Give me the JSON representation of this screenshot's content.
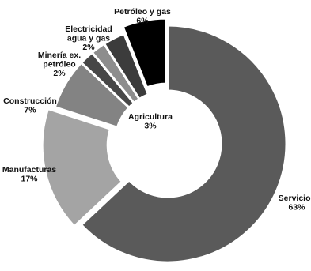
{
  "chart_data": {
    "type": "donut",
    "title": "",
    "start_angle_deg": 0,
    "direction": "clockwise",
    "series": [
      {
        "name": "Servicios",
        "label_lines": [
          "Servicios",
          "63%"
        ],
        "value": 63,
        "color": "#5a5a5a",
        "exploded": false
      },
      {
        "name": "Manufacturas",
        "label_lines": [
          "Manufacturas",
          "17%"
        ],
        "value": 17,
        "color": "#a4a4a4",
        "exploded": true
      },
      {
        "name": "Construcción",
        "label_lines": [
          "Construcción",
          "7%"
        ],
        "value": 7,
        "color": "#838383",
        "exploded": false
      },
      {
        "name": "Minería ex. petróleo",
        "label_lines": [
          "Minería ex.",
          "petróleo",
          "2%"
        ],
        "value": 2,
        "color": "#474747",
        "exploded": false
      },
      {
        "name": "Electricidad agua y gas",
        "label_lines": [
          "Electricidad",
          "agua y gas",
          "2%"
        ],
        "value": 2,
        "color": "#8d8d8d",
        "exploded": false
      },
      {
        "name": "Agricultura",
        "label_lines": [
          "Agricultura",
          "3%"
        ],
        "value": 3,
        "color": "#3c3c3c",
        "exploded": false
      },
      {
        "name": "Petróleo y gas",
        "label_lines": [
          "Petróleo y gas",
          "6%"
        ],
        "value": 6,
        "color": "#000000",
        "exploded": true
      }
    ]
  }
}
